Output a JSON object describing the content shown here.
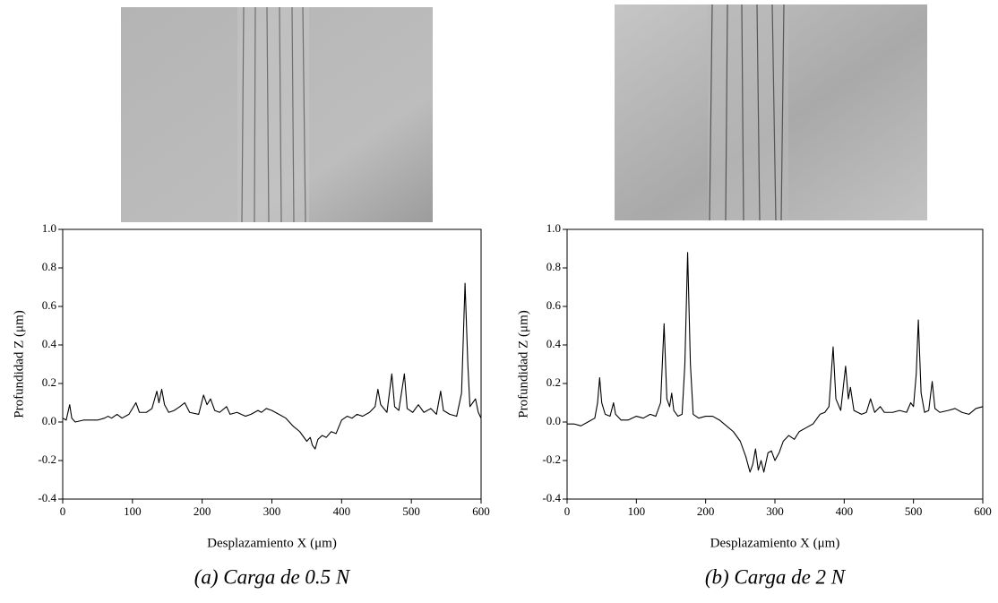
{
  "chart_data": [
    {
      "type": "line",
      "color": "#000000",
      "xlabel": "Desplazamiento X (μm)",
      "ylabel": "Profundidad Z (μm)",
      "caption": "(a) Carga de 0.5 N",
      "xlim": [
        0,
        600
      ],
      "ylim": [
        -0.4,
        1.0
      ],
      "xticks": [
        0,
        100,
        200,
        300,
        400,
        500,
        600
      ],
      "yticks": [
        -0.4,
        -0.2,
        {
          "value": 0,
          "label": "0.0"
        },
        0.2,
        0.4,
        0.6,
        0.8,
        {
          "value": 1,
          "label": "1.0"
        }
      ],
      "x": [
        0,
        5,
        10,
        13,
        18,
        30,
        50,
        60,
        65,
        70,
        78,
        85,
        95,
        105,
        110,
        120,
        128,
        135,
        138,
        142,
        146,
        152,
        160,
        168,
        175,
        182,
        195,
        202,
        207,
        212,
        218,
        225,
        235,
        240,
        250,
        262,
        270,
        280,
        285,
        292,
        300,
        310,
        320,
        330,
        340,
        350,
        355,
        358,
        362,
        366,
        372,
        378,
        385,
        392,
        400,
        408,
        415,
        422,
        430,
        440,
        448,
        452,
        456,
        465,
        472,
        476,
        482,
        490,
        494,
        502,
        510,
        518,
        528,
        536,
        542,
        546,
        555,
        565,
        572,
        577,
        581,
        584,
        588,
        592,
        596,
        600
      ],
      "values": [
        0.02,
        0.01,
        0.09,
        0.02,
        0,
        0.01,
        0.01,
        0.02,
        0.03,
        0.02,
        0.04,
        0.02,
        0.04,
        0.1,
        0.05,
        0.05,
        0.07,
        0.16,
        0.1,
        0.17,
        0.09,
        0.05,
        0.06,
        0.08,
        0.1,
        0.05,
        0.04,
        0.14,
        0.09,
        0.12,
        0.06,
        0.05,
        0.08,
        0.04,
        0.05,
        0.03,
        0.04,
        0.06,
        0.05,
        0.07,
        0.06,
        0.04,
        0.02,
        -0.02,
        -0.05,
        -0.1,
        -0.08,
        -0.12,
        -0.14,
        -0.09,
        -0.07,
        -0.08,
        -0.05,
        -0.06,
        0.01,
        0.03,
        0.02,
        0.04,
        0.03,
        0.05,
        0.08,
        0.17,
        0.09,
        0.05,
        0.25,
        0.08,
        0.06,
        0.25,
        0.07,
        0.05,
        0.09,
        0.05,
        0.07,
        0.04,
        0.16,
        0.06,
        0.04,
        0.03,
        0.15,
        0.72,
        0.3,
        0.08,
        0.1,
        0.12,
        0.05,
        0.02
      ]
    },
    {
      "type": "line",
      "color": "#000000",
      "xlabel": "Desplazamiento X (μm)",
      "ylabel": "Profundidad Z (μm)",
      "caption": "(b) Carga de 2 N",
      "xlim": [
        0,
        600
      ],
      "ylim": [
        -0.4,
        1.0
      ],
      "xticks": [
        0,
        100,
        200,
        300,
        400,
        500,
        600
      ],
      "yticks": [
        -0.4,
        -0.2,
        {
          "value": 0,
          "label": "0.0"
        },
        0.2,
        0.4,
        0.6,
        0.8,
        {
          "value": 1,
          "label": "1.0"
        }
      ],
      "x": [
        0,
        10,
        20,
        30,
        40,
        44,
        47,
        50,
        55,
        62,
        67,
        70,
        78,
        88,
        100,
        110,
        120,
        128,
        135,
        140,
        144,
        148,
        151,
        154,
        160,
        166,
        170,
        174,
        178,
        182,
        190,
        200,
        210,
        220,
        230,
        240,
        250,
        258,
        264,
        268,
        272,
        276,
        280,
        284,
        290,
        295,
        300,
        306,
        312,
        320,
        328,
        335,
        345,
        355,
        365,
        372,
        378,
        384,
        388,
        395,
        402,
        406,
        409,
        414,
        425,
        432,
        438,
        444,
        452,
        458,
        470,
        480,
        490,
        496,
        500,
        504,
        507,
        511,
        516,
        522,
        527,
        531,
        538,
        550,
        560,
        570,
        580,
        590,
        600
      ],
      "values": [
        -0.01,
        -0.01,
        -0.02,
        0,
        0.02,
        0.1,
        0.23,
        0.1,
        0.04,
        0.03,
        0.1,
        0.04,
        0.01,
        0.01,
        0.03,
        0.02,
        0.04,
        0.03,
        0.1,
        0.51,
        0.12,
        0.08,
        0.15,
        0.06,
        0.03,
        0.04,
        0.3,
        0.88,
        0.3,
        0.04,
        0.02,
        0.03,
        0.03,
        0.01,
        -0.02,
        -0.05,
        -0.1,
        -0.18,
        -0.26,
        -0.22,
        -0.14,
        -0.25,
        -0.2,
        -0.26,
        -0.16,
        -0.15,
        -0.2,
        -0.16,
        -0.1,
        -0.07,
        -0.09,
        -0.05,
        -0.03,
        -0.01,
        0.04,
        0.05,
        0.08,
        0.39,
        0.12,
        0.06,
        0.29,
        0.12,
        0.18,
        0.06,
        0.04,
        0.05,
        0.12,
        0.05,
        0.08,
        0.05,
        0.05,
        0.06,
        0.05,
        0.1,
        0.08,
        0.25,
        0.53,
        0.15,
        0.05,
        0.06,
        0.21,
        0.07,
        0.05,
        0.06,
        0.07,
        0.05,
        0.04,
        0.07,
        0.08
      ]
    }
  ]
}
